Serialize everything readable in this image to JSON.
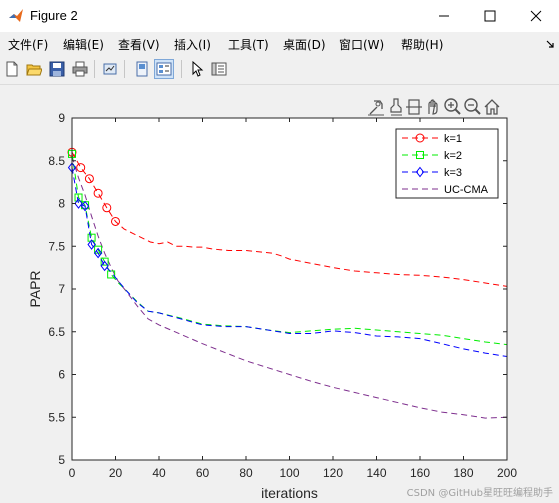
{
  "window": {
    "title": "Figure 2"
  },
  "menu": [
    "文件(F)",
    "编辑(E)",
    "查看(V)",
    "插入(I)",
    "工具(T)",
    "桌面(D)",
    "窗口(W)",
    "帮助(H)"
  ],
  "toolbar": {
    "icons": [
      "new-figure-icon",
      "open-file-icon",
      "save-icon",
      "print-icon",
      "link-plot-icon",
      "hide-plot-tools-icon",
      "show-plot-tools-icon",
      "edit-plot-icon",
      "property-inspector-icon"
    ]
  },
  "axes_toolbar": [
    "data-tip-icon",
    "brush-icon",
    "rotate-icon",
    "pan-icon",
    "zoom-in-icon",
    "zoom-out-icon",
    "home-icon"
  ],
  "watermark": "CSDN @GitHub星旺旺编程助手",
  "colors": {
    "k1": "#ff0000",
    "k2": "#00ee00",
    "k3": "#0000ff",
    "uc": "#7e2f8e"
  },
  "chart_data": {
    "type": "line",
    "xlabel": "iterations",
    "ylabel": "PAPR",
    "xlim": [
      0,
      200
    ],
    "ylim": [
      5,
      9
    ],
    "xticks": [
      "0",
      "20",
      "40",
      "60",
      "80",
      "100",
      "120",
      "140",
      "160",
      "180",
      "200"
    ],
    "yticks": [
      "5",
      "5.5",
      "6",
      "6.5",
      "7",
      "7.5",
      "8",
      "8.5",
      "9"
    ],
    "legend": {
      "position": "top-right",
      "entries": [
        "k=1",
        "k=2",
        "k=3",
        "UC-CMA"
      ]
    },
    "series": [
      {
        "name": "k=1",
        "color": "#ff0000",
        "style": "dash",
        "marker": "circle",
        "x": [
          0,
          4,
          8,
          12,
          16,
          20,
          24,
          28,
          32,
          36,
          40,
          44,
          48,
          52,
          56,
          60,
          64,
          68,
          72,
          76,
          80,
          84,
          88,
          92,
          96,
          100,
          110,
          120,
          130,
          140,
          150,
          160,
          170,
          180,
          190,
          200
        ],
        "y": [
          8.6,
          8.42,
          8.29,
          8.12,
          7.95,
          7.79,
          7.7,
          7.65,
          7.6,
          7.55,
          7.53,
          7.55,
          7.5,
          7.5,
          7.49,
          7.49,
          7.47,
          7.46,
          7.45,
          7.45,
          7.45,
          7.44,
          7.43,
          7.42,
          7.39,
          7.35,
          7.3,
          7.25,
          7.21,
          7.19,
          7.17,
          7.16,
          7.14,
          7.11,
          7.07,
          7.03
        ],
        "markers_x": [
          0,
          4,
          8,
          12,
          16,
          20
        ]
      },
      {
        "name": "k=2",
        "color": "#00ee00",
        "style": "dash",
        "marker": "square",
        "x": [
          0,
          3,
          6,
          9,
          12,
          15,
          18,
          21,
          25,
          30,
          35,
          40,
          50,
          60,
          70,
          80,
          90,
          100,
          110,
          120,
          130,
          140,
          150,
          160,
          170,
          180,
          190,
          200
        ],
        "y": [
          8.58,
          8.07,
          7.98,
          7.6,
          7.46,
          7.32,
          7.17,
          7.08,
          6.98,
          6.85,
          6.74,
          6.72,
          6.66,
          6.59,
          6.57,
          6.56,
          6.52,
          6.49,
          6.51,
          6.53,
          6.54,
          6.52,
          6.5,
          6.48,
          6.46,
          6.42,
          6.38,
          6.35
        ],
        "markers_x": [
          0,
          3,
          6,
          9,
          12,
          15,
          18
        ]
      },
      {
        "name": "k=3",
        "color": "#0000ff",
        "style": "dash",
        "marker": "diamond",
        "x": [
          0,
          3,
          6,
          9,
          12,
          15,
          18,
          21,
          25,
          30,
          35,
          40,
          50,
          60,
          70,
          80,
          90,
          100,
          110,
          120,
          130,
          140,
          150,
          160,
          170,
          180,
          190,
          200
        ],
        "y": [
          8.42,
          8.0,
          7.97,
          7.52,
          7.42,
          7.27,
          7.2,
          7.1,
          6.98,
          6.84,
          6.74,
          6.72,
          6.65,
          6.58,
          6.56,
          6.56,
          6.52,
          6.48,
          6.48,
          6.51,
          6.49,
          6.45,
          6.44,
          6.42,
          6.36,
          6.3,
          6.25,
          6.21
        ],
        "markers_x": [
          0,
          3,
          6,
          9,
          12,
          15
        ]
      },
      {
        "name": "UC-CMA",
        "color": "#7e2f8e",
        "style": "dash",
        "marker": "none",
        "x": [
          0,
          3,
          6,
          9,
          12,
          15,
          18,
          21,
          25,
          30,
          35,
          40,
          50,
          60,
          70,
          80,
          90,
          100,
          110,
          120,
          130,
          140,
          150,
          160,
          170,
          180,
          190,
          200
        ],
        "y": [
          8.55,
          8.3,
          8.1,
          7.85,
          7.62,
          7.42,
          7.25,
          7.1,
          6.97,
          6.8,
          6.65,
          6.58,
          6.47,
          6.36,
          6.26,
          6.16,
          6.08,
          6.0,
          5.92,
          5.85,
          5.79,
          5.73,
          5.67,
          5.61,
          5.56,
          5.53,
          5.49,
          5.5
        ]
      }
    ]
  }
}
